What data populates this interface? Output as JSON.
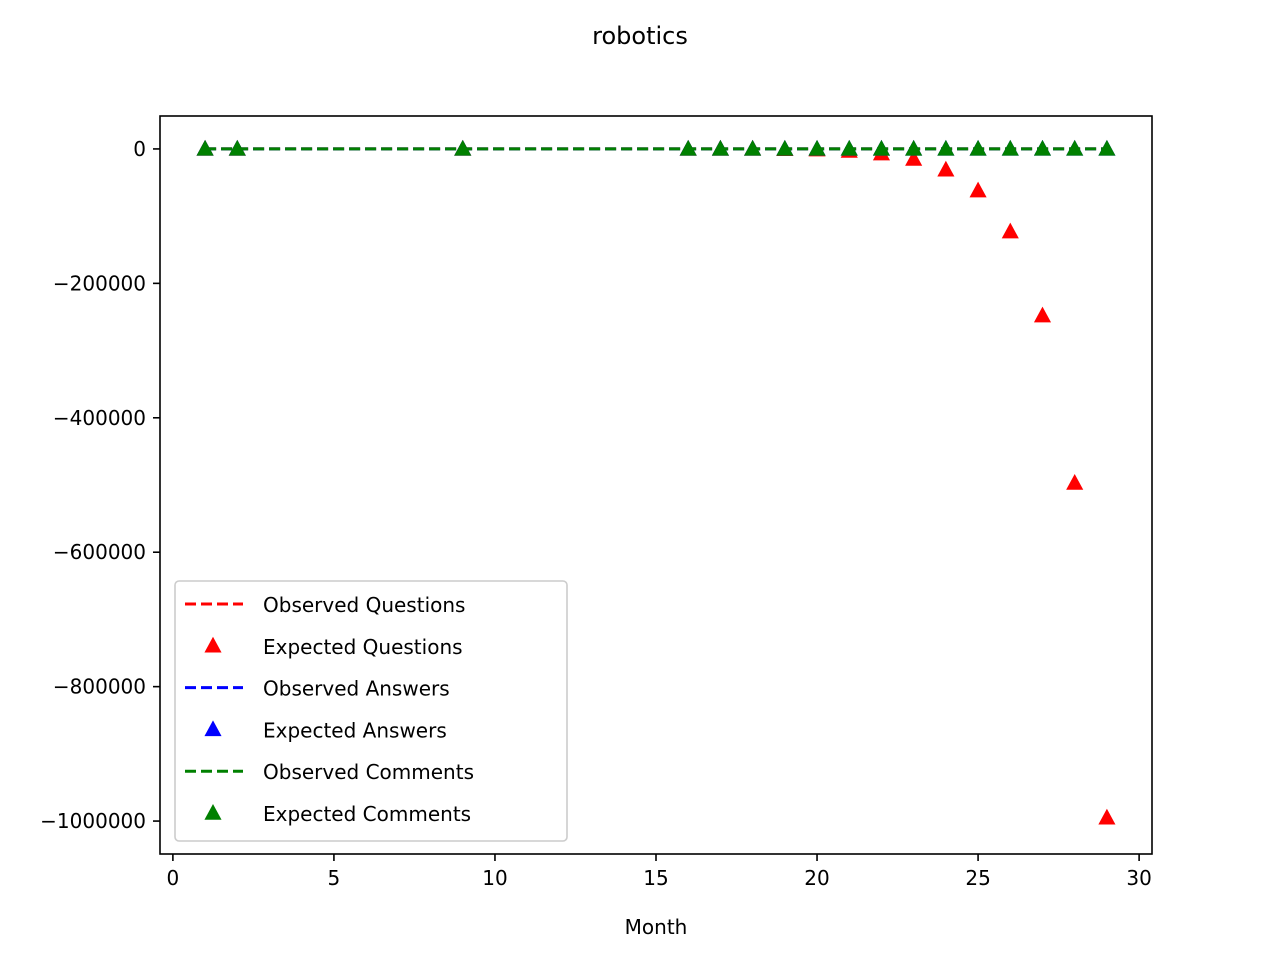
{
  "chart_data": {
    "type": "line",
    "title": "robotics",
    "xlabel": "Month",
    "ylabel": "",
    "xlim": [
      -0.4,
      30.4
    ],
    "ylim": [
      -1049000,
      49000
    ],
    "xticks": [
      0,
      5,
      10,
      15,
      20,
      25,
      30
    ],
    "xtick_labels": [
      "0",
      "5",
      "10",
      "15",
      "20",
      "25",
      "30"
    ],
    "yticks": [
      0,
      -200000,
      -400000,
      -600000,
      -800000,
      -1000000
    ],
    "ytick_labels": [
      "0",
      "−200000",
      "−400000",
      "−600000",
      "−800000",
      "−1000000"
    ],
    "grid": false,
    "legend_position": "lower-left",
    "x": [
      1,
      2,
      9,
      16,
      17,
      18,
      19,
      20,
      21,
      22,
      23,
      24,
      25,
      26,
      27,
      28,
      29
    ],
    "series": [
      {
        "name": "Observed Questions",
        "style": "dashed-line",
        "color": "#ff0000",
        "values": [
          0,
          0,
          0,
          0,
          0,
          0,
          0,
          0,
          0,
          0,
          0,
          0,
          0,
          0,
          0,
          0,
          0
        ]
      },
      {
        "name": "Expected Questions",
        "style": "triangle-marker",
        "color": "#ff0000",
        "values": [
          0,
          0,
          0,
          0,
          0,
          0,
          -500,
          -1000,
          -3000,
          -7000,
          -15000,
          -31000,
          -62000,
          -123000,
          -248000,
          -497000,
          -995000
        ]
      },
      {
        "name": "Observed Answers",
        "style": "dashed-line",
        "color": "#0000ff",
        "values": [
          0,
          0,
          0,
          0,
          0,
          0,
          0,
          0,
          0,
          0,
          0,
          0,
          0,
          0,
          0,
          0,
          0
        ]
      },
      {
        "name": "Expected Answers",
        "style": "triangle-marker",
        "color": "#0000ff",
        "values": [
          0,
          0,
          0,
          0,
          0,
          0,
          0,
          0,
          0,
          0,
          0,
          0,
          0,
          0,
          0,
          0,
          0
        ]
      },
      {
        "name": "Observed Comments",
        "style": "dashed-line",
        "color": "#008000",
        "values": [
          0,
          0,
          0,
          0,
          0,
          0,
          0,
          0,
          0,
          0,
          0,
          0,
          0,
          0,
          0,
          0,
          0
        ]
      },
      {
        "name": "Expected Comments",
        "style": "triangle-marker",
        "color": "#008000",
        "values": [
          0,
          0,
          0,
          0,
          0,
          0,
          0,
          0,
          0,
          0,
          0,
          0,
          0,
          0,
          0,
          0,
          0
        ]
      }
    ]
  }
}
